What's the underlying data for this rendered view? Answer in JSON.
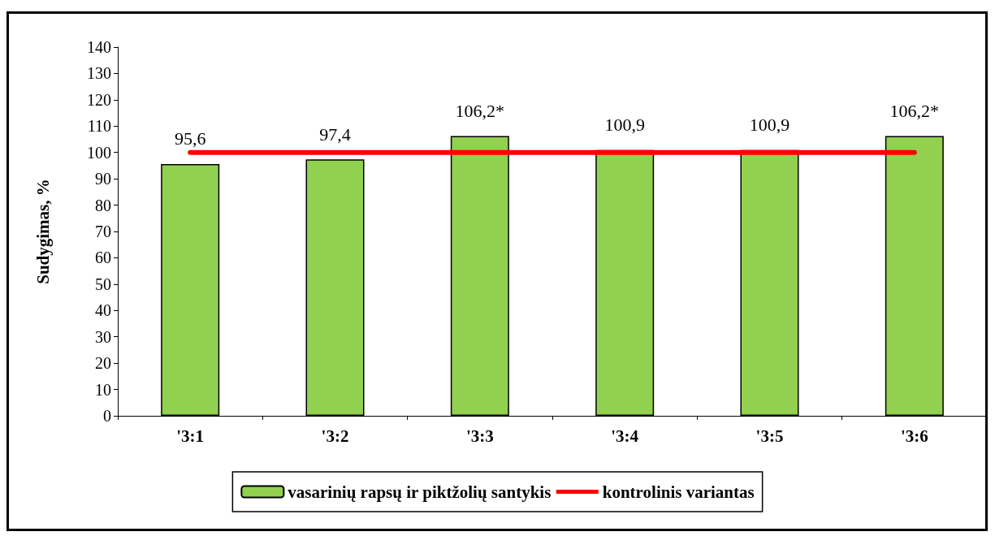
{
  "chart_data": {
    "type": "bar",
    "ylabel": "Sudygimas, %",
    "categories": [
      "'3:1",
      "'3:2",
      "'3:3",
      "'3:4",
      "'3:5",
      "'3:6"
    ],
    "series": [
      {
        "name": "vasarinių rapsų ir piktžolių santykis",
        "color": "#92d050",
        "values": [
          95.6,
          97.4,
          106.2,
          100.9,
          100.9,
          106.2
        ],
        "value_labels": [
          "95,6",
          "97,4",
          "106,2*",
          "100,9",
          "100,9",
          "106,2*"
        ]
      },
      {
        "name": "kontrolinis variantas",
        "type": "line",
        "color": "#ff0000",
        "values": [
          100,
          100,
          100,
          100,
          100,
          100
        ]
      }
    ],
    "ylim": [
      0,
      140
    ],
    "yticks": [
      0,
      10,
      20,
      30,
      40,
      50,
      60,
      70,
      80,
      90,
      100,
      110,
      120,
      130,
      140
    ],
    "grid": false,
    "legend": "bottom",
    "marker": "none",
    "line_style": "solid"
  }
}
